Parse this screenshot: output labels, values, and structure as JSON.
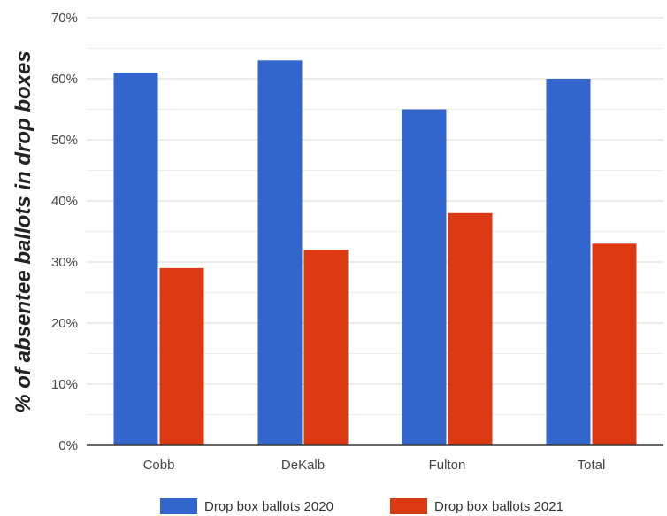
{
  "chart_data": {
    "type": "bar",
    "title": "",
    "xlabel": "",
    "ylabel": "% of absentee ballots in drop boxes",
    "categories": [
      "Cobb",
      "DeKalb",
      "Fulton",
      "Total"
    ],
    "series": [
      {
        "name": "Drop box ballots 2020",
        "color": "#3366cc",
        "values": [
          61,
          63,
          55,
          60
        ]
      },
      {
        "name": "Drop box ballots 2021",
        "color": "#dc3912",
        "values": [
          29,
          32,
          38,
          33
        ]
      }
    ],
    "ylim": [
      0,
      70
    ],
    "yticks": [
      0,
      10,
      20,
      30,
      40,
      50,
      60,
      70
    ],
    "ytick_labels": [
      "0%",
      "10%",
      "20%",
      "30%",
      "40%",
      "50%",
      "60%",
      "70%"
    ],
    "grid": true,
    "legend_position": "bottom"
  }
}
